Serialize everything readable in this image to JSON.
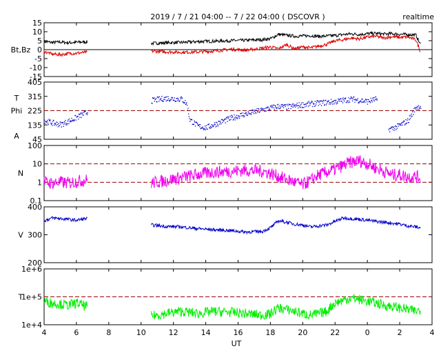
{
  "header": {
    "title": "2019 / 7 / 21   04:00 -- 7 / 22   04:00 ( DSCOVR )",
    "mode": "realtime"
  },
  "x_axis": {
    "label": "UT",
    "ticks": [
      {
        "h": 4,
        "label": "4"
      },
      {
        "h": 6,
        "label": "6"
      },
      {
        "h": 8,
        "label": "8"
      },
      {
        "h": 10,
        "label": "10"
      },
      {
        "h": 12,
        "label": "12"
      },
      {
        "h": 14,
        "label": "14"
      },
      {
        "h": 16,
        "label": "16"
      },
      {
        "h": 18,
        "label": "18"
      },
      {
        "h": 20,
        "label": "20"
      },
      {
        "h": 22,
        "label": "22"
      },
      {
        "h": 24,
        "label": "0"
      },
      {
        "h": 26,
        "label": "2"
      },
      {
        "h": 28,
        "label": "4"
      }
    ],
    "range_hours": [
      4,
      28
    ]
  },
  "chart_data": [
    {
      "type": "line",
      "panel": "magnetic-field",
      "ylabel": "Bt,Bz",
      "ylim": [
        -15,
        15
      ],
      "yticks": [
        15,
        10,
        5,
        0,
        -5,
        -10,
        -15
      ],
      "reference_lines": [
        0
      ],
      "gaps_hours": [
        [
          6.7,
          10.6
        ]
      ],
      "series": [
        {
          "name": "Bt",
          "color": "#000000",
          "x": [
            4.0,
            4.5,
            5.0,
            5.5,
            6.0,
            6.6,
            10.6,
            11.5,
            12.5,
            13.5,
            14.5,
            15.5,
            16.5,
            17.5,
            18.0,
            18.5,
            19.0,
            19.5,
            20.0,
            20.5,
            21.0,
            21.5,
            22.0,
            22.5,
            23.0,
            23.5,
            24.0,
            24.5,
            25.0,
            25.5,
            26.0,
            26.5,
            27.0,
            27.3
          ],
          "y": [
            4.5,
            4.0,
            4.2,
            3.9,
            4.1,
            4.3,
            3.5,
            3.8,
            4.0,
            4.5,
            4.7,
            5.0,
            5.2,
            5.6,
            6.0,
            8.5,
            8.0,
            7.5,
            7.6,
            7.8,
            7.4,
            7.6,
            7.9,
            8.4,
            8.8,
            8.5,
            8.9,
            9.1,
            8.7,
            8.9,
            8.6,
            8.4,
            8.2,
            2.5
          ]
        },
        {
          "name": "Bz",
          "color": "#dd0000",
          "x": [
            4.0,
            4.5,
            5.0,
            5.5,
            6.0,
            6.6,
            10.6,
            11.5,
            12.5,
            13.5,
            14.5,
            15.5,
            16.5,
            17.5,
            18.0,
            18.5,
            19.0,
            19.5,
            20.0,
            20.5,
            21.0,
            21.5,
            22.0,
            22.5,
            23.0,
            23.5,
            24.0,
            24.5,
            25.0,
            25.5,
            26.0,
            26.5,
            27.0,
            27.3
          ],
          "y": [
            -1.0,
            -2.5,
            -2.8,
            -2.2,
            -2.0,
            -1.5,
            -0.8,
            -1.2,
            -1.5,
            -1.3,
            -0.8,
            0.2,
            -0.3,
            0.8,
            1.5,
            0.5,
            2.8,
            0.5,
            1.5,
            1.0,
            2.0,
            3.0,
            5.0,
            5.5,
            6.5,
            6.0,
            7.0,
            7.5,
            6.5,
            7.2,
            6.8,
            7.0,
            5.5,
            -1.5
          ]
        }
      ]
    },
    {
      "type": "scatter",
      "panel": "phi-angle",
      "ylabel_lines": [
        "T",
        "Phi",
        "A"
      ],
      "ylim": [
        45,
        405
      ],
      "yticks": [
        405,
        315,
        225,
        135,
        45
      ],
      "reference_lines": [
        225
      ],
      "gaps_hours": [
        [
          6.7,
          10.6
        ],
        [
          24.6,
          25.3
        ]
      ],
      "series": [
        {
          "name": "Phi",
          "color": "#0000cc",
          "x": [
            4.0,
            4.5,
            5.0,
            5.5,
            6.0,
            6.6,
            10.6,
            11.5,
            12.5,
            12.8,
            13.0,
            13.5,
            14.0,
            14.5,
            15.0,
            16.0,
            17.0,
            18.0,
            18.5,
            19.0,
            20.0,
            21.0,
            22.0,
            23.0,
            24.0,
            24.5,
            25.3,
            25.8,
            26.5,
            27.0,
            27.3
          ],
          "y": [
            165,
            150,
            140,
            160,
            185,
            215,
            290,
            305,
            300,
            270,
            170,
            130,
            120,
            140,
            160,
            195,
            220,
            245,
            255,
            250,
            265,
            275,
            285,
            300,
            285,
            300,
            110,
            125,
            165,
            250,
            255
          ]
        }
      ]
    },
    {
      "type": "line",
      "panel": "density",
      "ylabel": "N",
      "ylim": [
        0.1,
        100
      ],
      "scale": "log",
      "yticks": [
        100,
        10,
        1,
        0.1
      ],
      "yticklabels": [
        "100",
        "10",
        "1",
        "0.1"
      ],
      "reference_lines": [
        10,
        1
      ],
      "gaps_hours": [
        [
          6.7,
          10.6
        ]
      ],
      "series": [
        {
          "name": "N",
          "color": "#ee00ee",
          "x": [
            4.0,
            4.5,
            5.0,
            5.5,
            6.0,
            6.6,
            10.6,
            11.5,
            12.5,
            13.5,
            14.5,
            15.5,
            16.5,
            17.5,
            18.5,
            19.0,
            19.5,
            20.0,
            20.5,
            21.0,
            21.5,
            22.0,
            22.5,
            23.0,
            23.5,
            24.0,
            24.5,
            25.0,
            25.5,
            26.0,
            26.5,
            27.0,
            27.3
          ],
          "y": [
            1.0,
            0.9,
            1.0,
            0.9,
            1.1,
            1.3,
            0.9,
            1.2,
            1.8,
            2.6,
            3.5,
            4.0,
            4.5,
            4.0,
            2.0,
            1.4,
            1.0,
            0.7,
            1.2,
            2.5,
            3.5,
            5.0,
            8.0,
            12.0,
            15.0,
            10.0,
            6.0,
            4.0,
            2.5,
            2.5,
            2.0,
            2.0,
            1.8
          ]
        }
      ]
    },
    {
      "type": "line",
      "panel": "velocity",
      "ylabel": "V",
      "ylim": [
        200,
        400
      ],
      "yticks": [
        400,
        300,
        200
      ],
      "gaps_hours": [
        [
          6.7,
          10.6
        ]
      ],
      "series": [
        {
          "name": "V",
          "color": "#0000cc",
          "x": [
            4.0,
            4.5,
            5.0,
            5.5,
            6.0,
            6.6,
            10.6,
            11.5,
            12.5,
            13.5,
            14.5,
            15.5,
            16.5,
            17.5,
            18.0,
            18.5,
            19.0,
            19.5,
            20.0,
            20.5,
            21.0,
            21.5,
            22.0,
            22.5,
            23.0,
            23.5,
            24.0,
            24.5,
            25.0,
            25.5,
            26.0,
            26.5,
            27.0,
            27.3
          ],
          "y": [
            350,
            360,
            358,
            355,
            352,
            358,
            335,
            330,
            328,
            322,
            318,
            315,
            310,
            312,
            325,
            350,
            345,
            338,
            335,
            328,
            332,
            335,
            348,
            360,
            358,
            355,
            352,
            348,
            345,
            342,
            338,
            332,
            328,
            325
          ]
        }
      ]
    },
    {
      "type": "line",
      "panel": "temperature",
      "ylabel": "T",
      "ylim": [
        10000,
        1000000
      ],
      "scale": "log",
      "yticks": [
        1000000,
        100000,
        10000
      ],
      "yticklabels": [
        "1e+6",
        "1e+5",
        "1e+4"
      ],
      "reference_lines": [
        100000
      ],
      "gaps_hours": [
        [
          6.7,
          10.6
        ]
      ],
      "series": [
        {
          "name": "T",
          "color": "#00ee00",
          "x": [
            4.0,
            4.5,
            5.0,
            5.5,
            6.0,
            6.6,
            10.6,
            11.5,
            12.5,
            13.5,
            14.5,
            15.5,
            16.5,
            17.5,
            18.0,
            18.5,
            19.0,
            19.5,
            20.0,
            20.5,
            21.0,
            21.5,
            22.0,
            22.5,
            23.0,
            23.5,
            24.0,
            24.5,
            25.0,
            25.5,
            26.0,
            26.5,
            27.0,
            27.3
          ],
          "y": [
            70000,
            60000,
            55000,
            50000,
            60000,
            45000,
            20000,
            25000,
            30000,
            25000,
            30000,
            28000,
            25000,
            22000,
            24000,
            40000,
            35000,
            30000,
            25000,
            22000,
            25000,
            30000,
            60000,
            75000,
            90000,
            80000,
            70000,
            60000,
            50000,
            45000,
            40000,
            35000,
            30000,
            35000
          ]
        }
      ]
    }
  ]
}
